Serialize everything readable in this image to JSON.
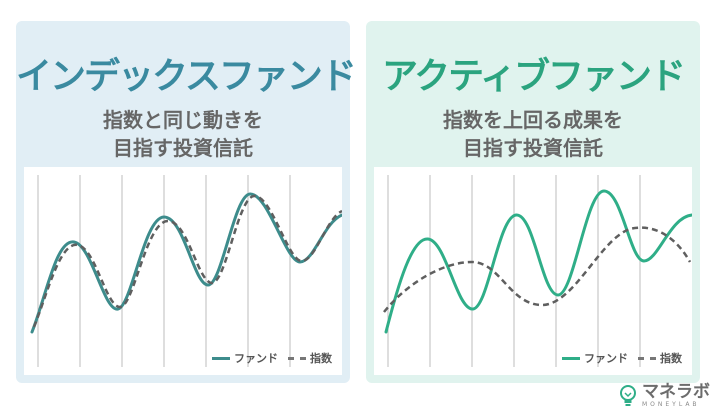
{
  "panels": {
    "index": {
      "title": "インデックスファンド",
      "subtitle_line1": "指数と同じ動きを",
      "subtitle_line2": "目指す投資信託",
      "legend_fund": "ファンド",
      "legend_index": "指数",
      "colors": {
        "fund": "#3d8c8c",
        "index": "#5f5f5f",
        "accent": "#3a8aa0"
      }
    },
    "active": {
      "title": "アクティブファンド",
      "subtitle_line1": "指数を上回る成果を",
      "subtitle_line2": "目指す投資信託",
      "legend_fund": "ファンド",
      "legend_index": "指数",
      "colors": {
        "fund": "#2fae88",
        "index": "#5f5f5f",
        "accent": "#2ba47f"
      }
    }
  },
  "logo": {
    "text": "マネラボ",
    "subtext": "MONEYLAB",
    "icon": "lightbulb-icon"
  }
}
